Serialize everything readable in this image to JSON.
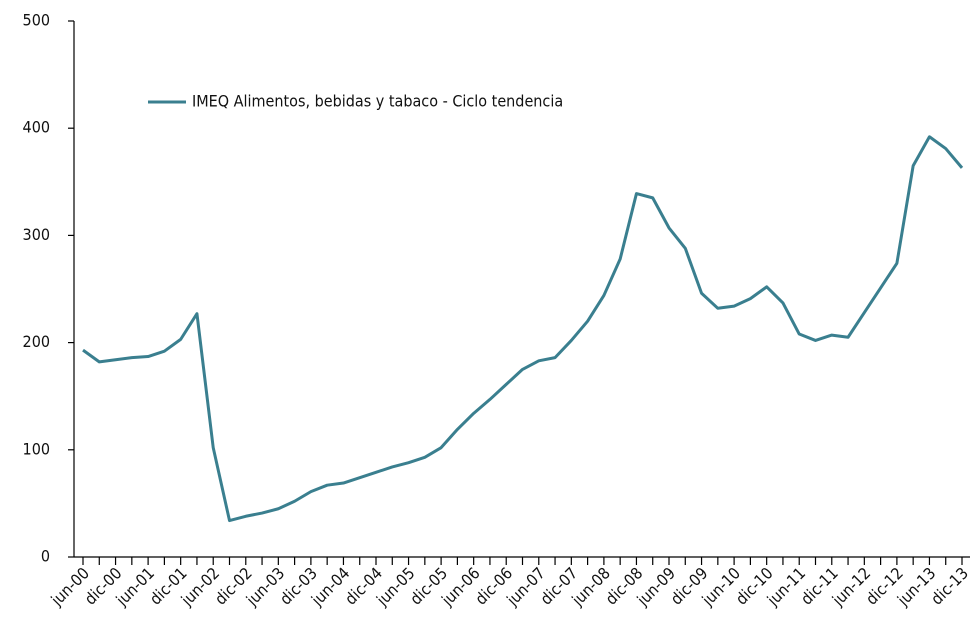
{
  "chart_data": {
    "type": "line",
    "categories": [
      "jun-00",
      null,
      "dic-00",
      null,
      "jun-01",
      null,
      "dic-01",
      null,
      "jun-02",
      null,
      "dic-02",
      null,
      "jun-03",
      null,
      "dic-03",
      null,
      "jun-04",
      null,
      "dic-04",
      null,
      "jun-05",
      null,
      "dic-05",
      null,
      "jun-06",
      null,
      "dic-06",
      null,
      "jun-07",
      null,
      "dic-07",
      null,
      "jun-08",
      null,
      "dic-08",
      null,
      "jun-09",
      null,
      "dic-09",
      null,
      "jun-10",
      null,
      "dic-10",
      null,
      "jun-11",
      null,
      "dic-11",
      null,
      "jun-12",
      null,
      "dic-12",
      null,
      "jun-13",
      null,
      "dic-13"
    ],
    "series": [
      {
        "name": "IMEQ Alimentos, bebidas y tabaco - Ciclo tendencia",
        "color": "#3a7f8f",
        "values": [
          193,
          182,
          184,
          186,
          187,
          192,
          203,
          227,
          102,
          34,
          38,
          41,
          45,
          52,
          61,
          67,
          69,
          74,
          79,
          84,
          88,
          93,
          102,
          119,
          134,
          147,
          161,
          175,
          183,
          186,
          202,
          220,
          244,
          278,
          339,
          335,
          307,
          288,
          246,
          232,
          234,
          241,
          252,
          237,
          208,
          202,
          207,
          205,
          228,
          251,
          274,
          365,
          392,
          381,
          363
        ]
      }
    ],
    "ylim": [
      0,
      500
    ],
    "yticks": [
      0,
      100,
      200,
      300,
      400,
      500
    ],
    "legend": "upper left"
  }
}
